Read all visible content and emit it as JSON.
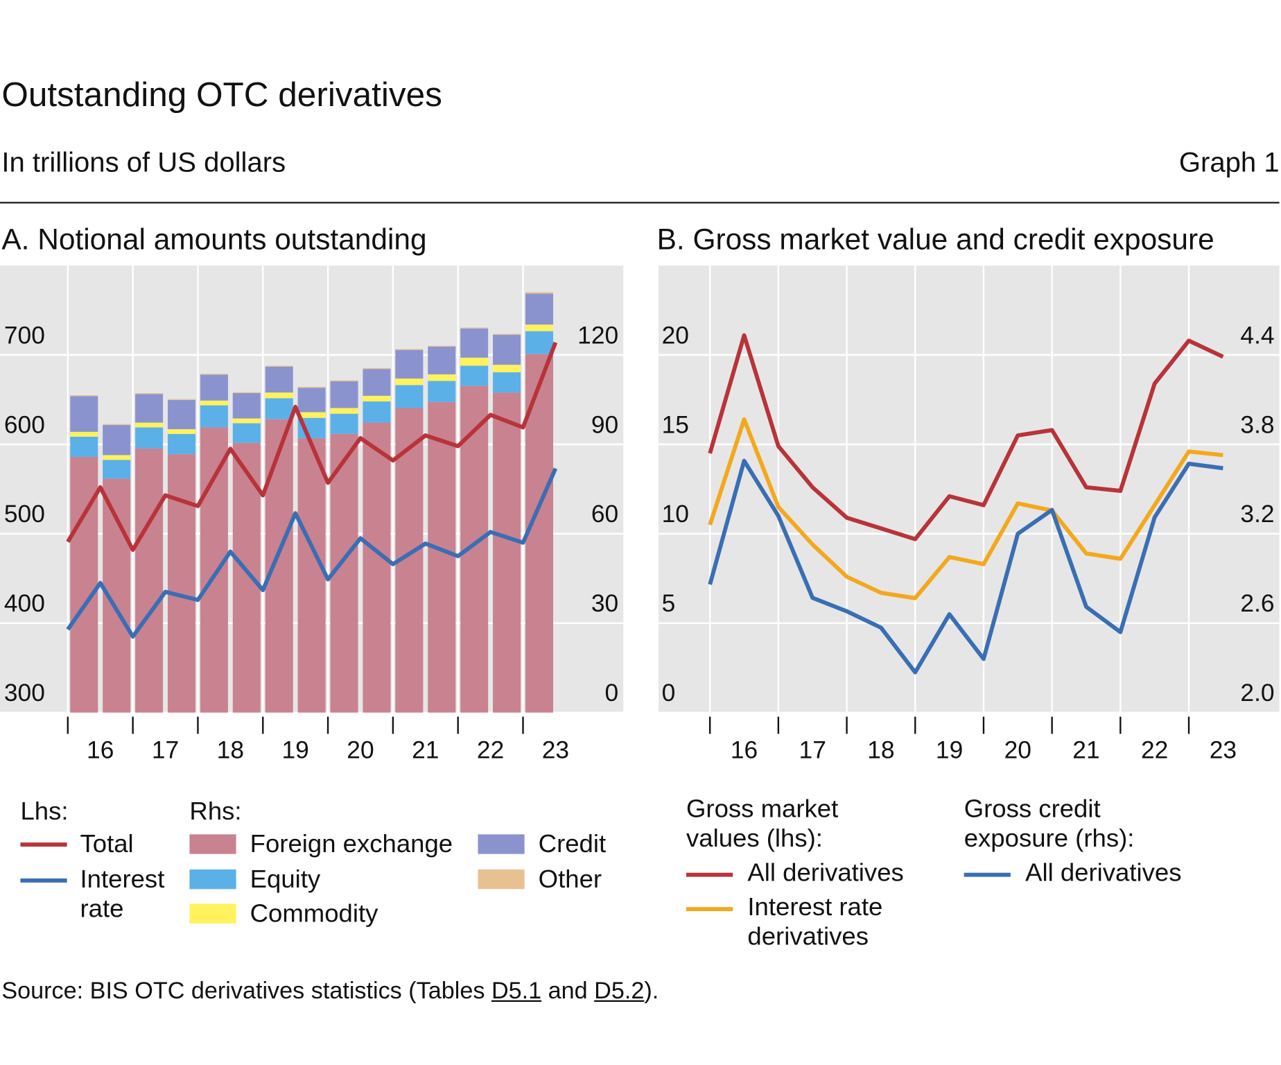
{
  "title": "Outstanding OTC derivatives",
  "subtitle": "In trillions of US dollars",
  "graph_label": "Graph 1",
  "source": [
    "Source: BIS OTC derivatives statistics (Tables ",
    "D5.1",
    " and ",
    "D5.2",
    ")."
  ],
  "chart_data": [
    {
      "type": "bar",
      "title": "A. Notional amounts outstanding",
      "categories": [
        null,
        "16",
        null,
        "17",
        null,
        "18",
        null,
        "19",
        null,
        "20",
        null,
        "21",
        null,
        "22",
        null,
        "23"
      ],
      "ylim": [
        300,
        800
      ],
      "yticks": [
        300,
        400,
        500,
        600,
        700
      ],
      "y2lim": [
        0,
        150
      ],
      "y2ticks": [
        0,
        30,
        60,
        90,
        120
      ],
      "grid": true,
      "stacked": true,
      "legend_headings": [
        "Lhs:",
        "Rhs:"
      ],
      "series": [
        {
          "name": "Total",
          "type": "line",
          "axis": "y",
          "color": "#b8333a",
          "values": [
            491,
            552,
            482,
            543,
            531,
            595,
            543,
            642,
            557,
            607,
            582,
            610,
            598,
            633,
            619,
            714
          ]
        },
        {
          "name": "Interest rate",
          "type": "line",
          "axis": "y",
          "color": "#3a6eb4",
          "values": [
            393,
            445,
            385,
            435,
            426,
            480,
            437,
            523,
            449,
            495,
            466,
            489,
            475,
            502,
            490,
            573
          ]
        },
        {
          "name": "Foreign exchange",
          "type": "bar",
          "axis": "y2",
          "color": "#c98290",
          "values": [
            null,
            85.8,
            78.5,
            88.6,
            86.7,
            95.7,
            90.5,
            98.4,
            92.1,
            93.5,
            97.3,
            102.2,
            104.2,
            109.6,
            107.4,
            120.3
          ]
        },
        {
          "name": "Equity",
          "type": "bar",
          "axis": "y2",
          "color": "#5cb0e8",
          "values": [
            null,
            6.8,
            6.3,
            7.1,
            6.8,
            7.4,
            6.6,
            7.1,
            6.8,
            6.8,
            7.1,
            7.7,
            7.1,
            6.8,
            6.8,
            7.7
          ]
        },
        {
          "name": "Commodity",
          "type": "bar",
          "axis": "y2",
          "color": "#fff25c",
          "values": [
            null,
            1.6,
            1.6,
            1.6,
            1.6,
            1.6,
            1.6,
            1.9,
            1.9,
            1.9,
            1.9,
            2.2,
            2.2,
            2.7,
            2.5,
            2.2
          ]
        },
        {
          "name": "Credit",
          "type": "bar",
          "axis": "y2",
          "color": "#8b93cf",
          "values": [
            null,
            12,
            10.1,
            9.6,
            9.8,
            8.7,
            8.5,
            8.7,
            8.2,
            9.0,
            9.0,
            9.6,
            9.3,
            9.8,
            10.1,
            10.4
          ]
        },
        {
          "name": "Other",
          "type": "bar",
          "axis": "y2",
          "color": "#e8c192",
          "values": [
            null,
            0.3,
            0.3,
            0.3,
            0.3,
            0.3,
            0.3,
            0.3,
            0.3,
            0.3,
            0.3,
            0.3,
            0.3,
            0.3,
            0.3,
            0.5
          ]
        }
      ]
    },
    {
      "type": "line",
      "title": "B. Gross market value and credit exposure",
      "categories": [
        null,
        "16",
        null,
        "17",
        null,
        "18",
        null,
        "19",
        null,
        "20",
        null,
        "21",
        null,
        "22",
        null,
        "23"
      ],
      "ylim": [
        0,
        25
      ],
      "yticks": [
        0,
        5,
        10,
        15,
        20
      ],
      "y2lim": [
        2,
        5
      ],
      "y2ticks": [
        {
          "value": 2,
          "label": "2.0"
        },
        2.6,
        3.2,
        3.8,
        4.4
      ],
      "grid": true,
      "legend_headings": [
        "Gross market values (lhs):",
        "Gross credit exposure (rhs):"
      ],
      "series": [
        {
          "name": "All derivatives",
          "type": "line",
          "axis": "y",
          "color": "#b8333a",
          "values": [
            14.5,
            21.1,
            14.9,
            12.6,
            10.9,
            10.3,
            9.7,
            12.1,
            11.6,
            15.5,
            15.8,
            12.6,
            12.4,
            18.4,
            20.8,
            19.9
          ]
        },
        {
          "name": "Interest rate derivatives",
          "type": "line",
          "axis": "y",
          "color": "#f3a81d",
          "values": [
            10.5,
            16.4,
            11.5,
            9.4,
            7.6,
            6.7,
            6.4,
            8.7,
            8.3,
            11.7,
            11.3,
            8.9,
            8.6,
            11.6,
            14.6,
            14.4
          ]
        },
        {
          "name": "All derivatives",
          "type": "line",
          "axis": "y2",
          "color": "#3a6eb4",
          "values": [
            2.86,
            3.69,
            3.32,
            2.77,
            2.68,
            2.57,
            2.27,
            2.66,
            2.36,
            3.2,
            3.36,
            2.71,
            2.54,
            3.31,
            3.67,
            3.64
          ]
        }
      ]
    }
  ]
}
